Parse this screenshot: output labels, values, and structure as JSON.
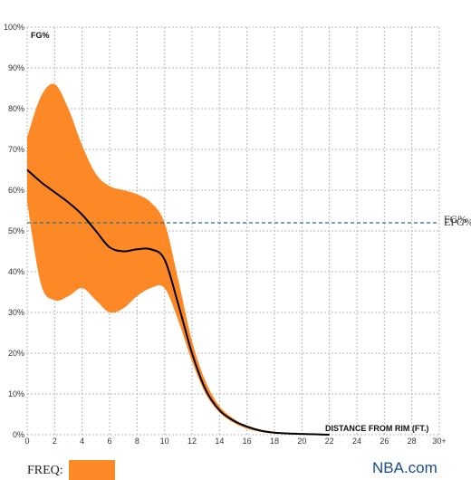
{
  "chart_data": {
    "type": "area",
    "ylabel": "FG%",
    "xlabel": "DISTANCE FROM RIM (FT.)",
    "xlim": [
      0,
      30
    ],
    "ylim": [
      0,
      100
    ],
    "x_ticks": [
      "0",
      "2",
      "4",
      "6",
      "8",
      "10",
      "12",
      "14",
      "16",
      "18",
      "20",
      "22",
      "24",
      "26",
      "28",
      "30+"
    ],
    "y_ticks": [
      "0%",
      "10%",
      "20%",
      "30%",
      "40%",
      "50%",
      "60%",
      "70%",
      "80%",
      "90%",
      "100%"
    ],
    "grid": true,
    "reference_line": {
      "value": 52,
      "label_a": "FG%",
      "label_b": "EFG%"
    },
    "series": [
      {
        "kind": "band",
        "color": "#fd8826",
        "x": [
          0,
          1,
          2,
          3,
          4,
          5,
          6,
          7,
          8,
          9,
          10,
          11,
          12,
          13,
          14,
          15,
          16,
          17,
          18,
          19,
          20,
          21,
          22
        ],
        "upper": [
          73,
          83,
          86,
          80,
          71,
          64,
          61,
          60,
          59,
          57,
          52,
          38,
          23,
          13,
          7,
          4,
          2,
          1,
          0.5,
          0.3,
          0.2,
          0.1,
          0
        ],
        "lower": [
          57,
          37,
          33,
          34,
          36,
          33,
          30,
          31,
          34,
          36,
          36,
          28,
          18,
          10,
          5.5,
          3,
          1.5,
          0.7,
          0.3,
          0.2,
          0.1,
          0,
          0
        ]
      },
      {
        "kind": "line",
        "color": "#000000",
        "x": [
          0,
          1,
          2,
          3,
          4,
          5,
          6,
          7,
          8,
          9,
          10,
          11,
          12,
          13,
          14,
          15,
          16,
          17,
          18,
          19,
          20,
          21,
          22
        ],
        "y": [
          65,
          62,
          59.5,
          57,
          54,
          50,
          46,
          45,
          45.5,
          45.5,
          43,
          32,
          20,
          11,
          6,
          3.5,
          2,
          1,
          0.5,
          0.3,
          0.2,
          0.1,
          0
        ]
      }
    ]
  },
  "legend": {
    "freq_label": "FREQ:",
    "freq_color": "#fd8826"
  },
  "brand": "NBA.com"
}
